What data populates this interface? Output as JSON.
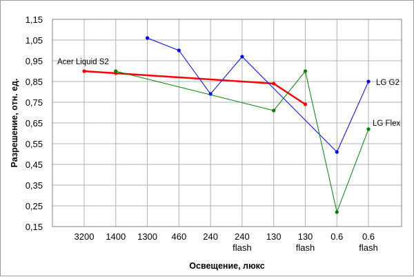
{
  "chart_data": {
    "type": "line",
    "xlabel": "Освещение, люкс",
    "ylabel": "Разрешение, отн. ед.",
    "ylim": [
      0.15,
      1.15
    ],
    "yticks": [
      "1,15",
      "1,05",
      "0,95",
      "0,85",
      "0,75",
      "0,65",
      "0,55",
      "0,45",
      "0,35",
      "0,25",
      "0,15"
    ],
    "categories": [
      [
        "3200"
      ],
      [
        "1400"
      ],
      [
        "1300"
      ],
      [
        "460"
      ],
      [
        "240"
      ],
      [
        "240",
        "flash"
      ],
      [
        "130"
      ],
      [
        "130",
        "flash"
      ],
      [
        "0.6"
      ],
      [
        "0.6",
        "flash"
      ]
    ],
    "grid": true,
    "series": [
      {
        "name": "Acer Liquid S2",
        "color": "#ff0000",
        "values": [
          0.9,
          0.89,
          null,
          null,
          null,
          null,
          0.84,
          0.74,
          null,
          null
        ]
      },
      {
        "name": "LG G2",
        "color": "#0000ff",
        "values": [
          null,
          null,
          1.06,
          1.0,
          0.79,
          0.97,
          null,
          null,
          0.51,
          0.85
        ]
      },
      {
        "name": "LG Flex",
        "color": "#008000",
        "values": [
          null,
          0.9,
          null,
          null,
          null,
          null,
          0.71,
          0.9,
          0.22,
          0.62
        ]
      }
    ]
  }
}
